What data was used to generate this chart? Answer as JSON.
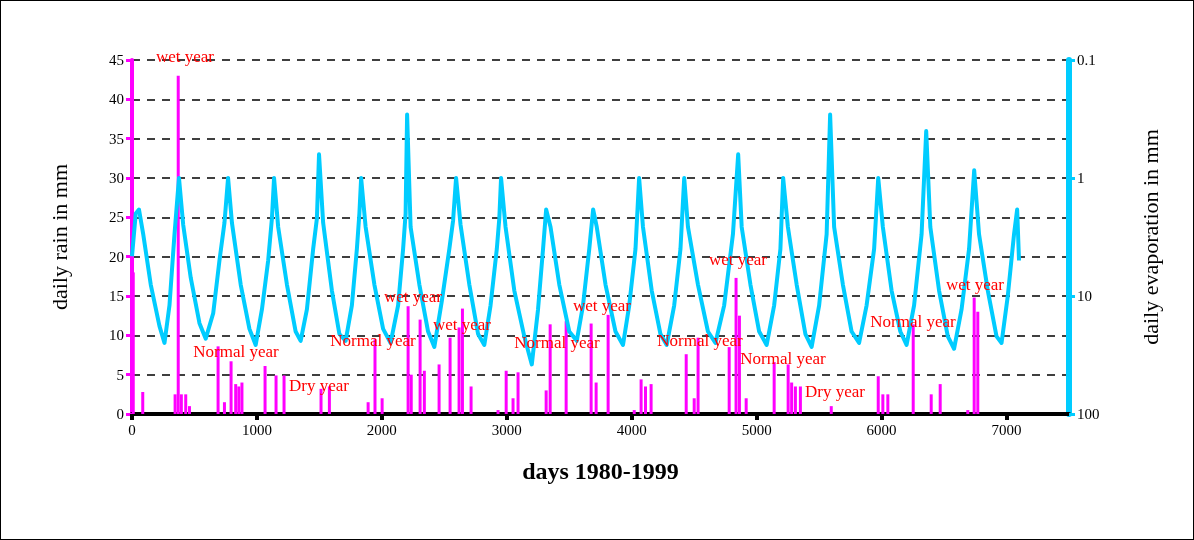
{
  "chart_data": {
    "type": "bar",
    "xlabel": "days 1980-1999",
    "ylabel": "daily rain in mm",
    "y2label": "daily evaporation in mm",
    "xlim": [
      0,
      7500
    ],
    "xticks": [
      0,
      1000,
      2000,
      3000,
      4000,
      5000,
      6000,
      7000
    ],
    "ylim": [
      0,
      45
    ],
    "yticks": [
      0,
      5,
      10,
      15,
      20,
      25,
      30,
      35,
      40,
      45
    ],
    "y2lim": [
      100,
      0.1
    ],
    "y2ticks": [
      0.1,
      1,
      10,
      100
    ],
    "log": "y2",
    "grid": "y",
    "series": [
      {
        "color": "#ff00ff",
        "x": [
          10,
          86,
          345,
          370,
          395,
          430,
          460,
          689,
          740,
          793,
          830,
          855,
          880,
          1065,
          1153,
          1217,
          1513,
          1580,
          1890,
          1945,
          2002,
          2210,
          2235,
          2306,
          2340,
          2458,
          2546,
          2618,
          2645,
          2714,
          2930,
          2995,
          3050,
          3090,
          3315,
          3347,
          3475,
          3675,
          3715,
          3811,
          4020,
          4075,
          4110,
          4155,
          4436,
          4500,
          4531,
          4780,
          4835,
          4862,
          4916,
          5140,
          5252,
          5280,
          5310,
          5350,
          5597,
          5973,
          6010,
          6050,
          6253,
          6397,
          6469,
          6690,
          6741,
          6770
        ],
        "values": [
          18,
          2.8,
          2.5,
          43,
          2.5,
          2.5,
          1,
          8.6,
          1.5,
          6.7,
          3.8,
          3.5,
          4,
          6.1,
          4.9,
          4.9,
          3.2,
          3.5,
          1.5,
          9.5,
          2,
          13.7,
          5,
          12,
          5.5,
          6.3,
          9.7,
          11,
          13.4,
          3.5,
          0.5,
          5.5,
          2,
          5.3,
          3,
          11.4,
          11.8,
          11.5,
          4,
          12.6,
          0.5,
          4.4,
          3.5,
          3.8,
          7.6,
          2,
          9.7,
          8.5,
          17.3,
          12.5,
          2,
          6.6,
          6.3,
          4,
          3.5,
          3.5,
          1,
          4.8,
          2.5,
          2.5,
          11.4,
          2.5,
          3.8,
          0.5,
          14.8,
          13
        ]
      },
      {
        "type": "line",
        "axis": "y2",
        "color": "#00ccff",
        "marker": "none",
        "x": [
          0,
          30,
          56,
          90,
          150,
          220,
          260,
          300,
          340,
          376,
          410,
          470,
          540,
          590,
          650,
          700,
          740,
          769,
          800,
          870,
          940,
          990,
          1040,
          1090,
          1120,
          1137,
          1170,
          1240,
          1310,
          1350,
          1400,
          1450,
          1480,
          1497,
          1530,
          1600,
          1660,
          1710,
          1760,
          1800,
          1820,
          1834,
          1870,
          1940,
          2010,
          2070,
          2130,
          2170,
          2190,
          2202,
          2230,
          2300,
          2370,
          2420,
          2480,
          2540,
          2570,
          2594,
          2630,
          2700,
          2770,
          2820,
          2870,
          2920,
          2940,
          2954,
          2990,
          3060,
          3140,
          3200,
          3250,
          3290,
          3315,
          3350,
          3420,
          3500,
          3560,
          3610,
          3660,
          3691,
          3720,
          3790,
          3870,
          3930,
          3980,
          4030,
          4059,
          4090,
          4160,
          4230,
          4280,
          4340,
          4390,
          4420,
          4450,
          4530,
          4610,
          4670,
          4740,
          4810,
          4852,
          4880,
          4950,
          5020,
          5080,
          5140,
          5190,
          5212,
          5250,
          5320,
          5390,
          5440,
          5500,
          5560,
          5588,
          5620,
          5690,
          5760,
          5820,
          5880,
          5940,
          5973,
          6010,
          6080,
          6150,
          6200,
          6260,
          6320,
          6357,
          6390,
          6460,
          6530,
          6580,
          6640,
          6700,
          6741,
          6780,
          6850,
          6920,
          6960,
          7010,
          7060,
          7085,
          7100
        ],
        "values": [
          4.6,
          2.0,
          1.85,
          3.0,
          8,
          18,
          25,
          12,
          3.0,
          1.0,
          2.5,
          7,
          17,
          23,
          14,
          5,
          2.4,
          1.0,
          2.4,
          8,
          19,
          26,
          13,
          5,
          2.2,
          1.0,
          2.6,
          8,
          20,
          24,
          13,
          4,
          2.2,
          0.63,
          2.4,
          9,
          21,
          24,
          12,
          4,
          2.0,
          1.0,
          2.6,
          8,
          19,
          25,
          12,
          4,
          2.0,
          0.29,
          2.6,
          8,
          20,
          27,
          11,
          4,
          2.3,
          1.0,
          2.5,
          8,
          21,
          26,
          12,
          4,
          2.2,
          1.0,
          2.6,
          9,
          22,
          38,
          13,
          4,
          1.85,
          2.6,
          8,
          20,
          24,
          12,
          4,
          1.85,
          2.6,
          8,
          20,
          26,
          12,
          4,
          1.0,
          2.6,
          9,
          21,
          26,
          12,
          4,
          1.0,
          2.6,
          8,
          20,
          25,
          12,
          3,
          0.63,
          2.6,
          8,
          20,
          26,
          12,
          4,
          1.0,
          2.6,
          8,
          21,
          27,
          12,
          3,
          0.29,
          2.6,
          8,
          20,
          25,
          12,
          4,
          1.0,
          2.6,
          9,
          20,
          26,
          12,
          3,
          0.4,
          2.6,
          9,
          22,
          28,
          13,
          4,
          0.86,
          3,
          9,
          22,
          25,
          10,
          3,
          1.85,
          5
        ]
      }
    ],
    "annotations": [
      "wet year",
      "Normal year",
      "Dry year",
      "Normal year",
      "wet year",
      "wet year",
      "Normal year",
      "wet year",
      "Normal year",
      "wet year",
      "Normal year",
      "Dry year",
      "Normal year",
      "wet year"
    ]
  }
}
